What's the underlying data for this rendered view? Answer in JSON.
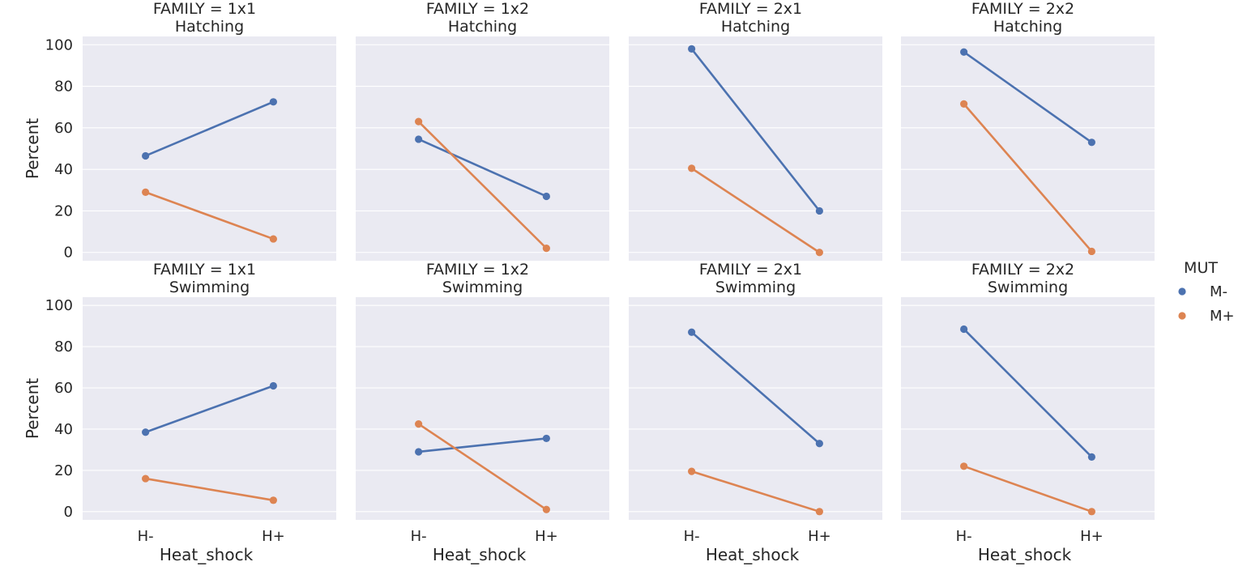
{
  "chart_data": {
    "type": "line",
    "layout": "facet-grid",
    "x_categories": [
      "H-",
      "H+"
    ],
    "xlabel": "Heat_shock",
    "ylabel": "Percent",
    "ylim": [
      -4,
      104
    ],
    "yticks": [
      0,
      20,
      40,
      60,
      80,
      100
    ],
    "grid": true,
    "legend": {
      "title": "MUT",
      "placement": "right",
      "entries": [
        {
          "name": "M-",
          "color": "#4c72b0"
        },
        {
          "name": "M+",
          "color": "#dd8452"
        }
      ]
    },
    "panels": [
      {
        "title_line1": "FAMILY = 1x1",
        "title_line2": "Hatching",
        "series": [
          {
            "name": "M-",
            "values": [
              46.5,
              72.5
            ]
          },
          {
            "name": "M+",
            "values": [
              29,
              6.5
            ]
          }
        ]
      },
      {
        "title_line1": "FAMILY = 1x2",
        "title_line2": "Hatching",
        "series": [
          {
            "name": "M-",
            "values": [
              54.5,
              27
            ]
          },
          {
            "name": "M+",
            "values": [
              63,
              2
            ]
          }
        ]
      },
      {
        "title_line1": "FAMILY = 2x1",
        "title_line2": "Hatching",
        "series": [
          {
            "name": "M-",
            "values": [
              98,
              20
            ]
          },
          {
            "name": "M+",
            "values": [
              40.5,
              0
            ]
          }
        ]
      },
      {
        "title_line1": "FAMILY = 2x2",
        "title_line2": "Hatching",
        "series": [
          {
            "name": "M-",
            "values": [
              96.5,
              53
            ]
          },
          {
            "name": "M+",
            "values": [
              71.5,
              0.5
            ]
          }
        ]
      },
      {
        "title_line1": "FAMILY = 1x1",
        "title_line2": "Swimming",
        "series": [
          {
            "name": "M-",
            "values": [
              38.5,
              61
            ]
          },
          {
            "name": "M+",
            "values": [
              16,
              5.5
            ]
          }
        ]
      },
      {
        "title_line1": "FAMILY = 1x2",
        "title_line2": "Swimming",
        "series": [
          {
            "name": "M-",
            "values": [
              29,
              35.5
            ]
          },
          {
            "name": "M+",
            "values": [
              42.5,
              1
            ]
          }
        ]
      },
      {
        "title_line1": "FAMILY = 2x1",
        "title_line2": "Swimming",
        "series": [
          {
            "name": "M-",
            "values": [
              87,
              33
            ]
          },
          {
            "name": "M+",
            "values": [
              19.5,
              0
            ]
          }
        ]
      },
      {
        "title_line1": "FAMILY = 2x2",
        "title_line2": "Swimming",
        "series": [
          {
            "name": "M-",
            "values": [
              88.5,
              26.5
            ]
          },
          {
            "name": "M+",
            "values": [
              22,
              0
            ]
          }
        ]
      }
    ]
  }
}
